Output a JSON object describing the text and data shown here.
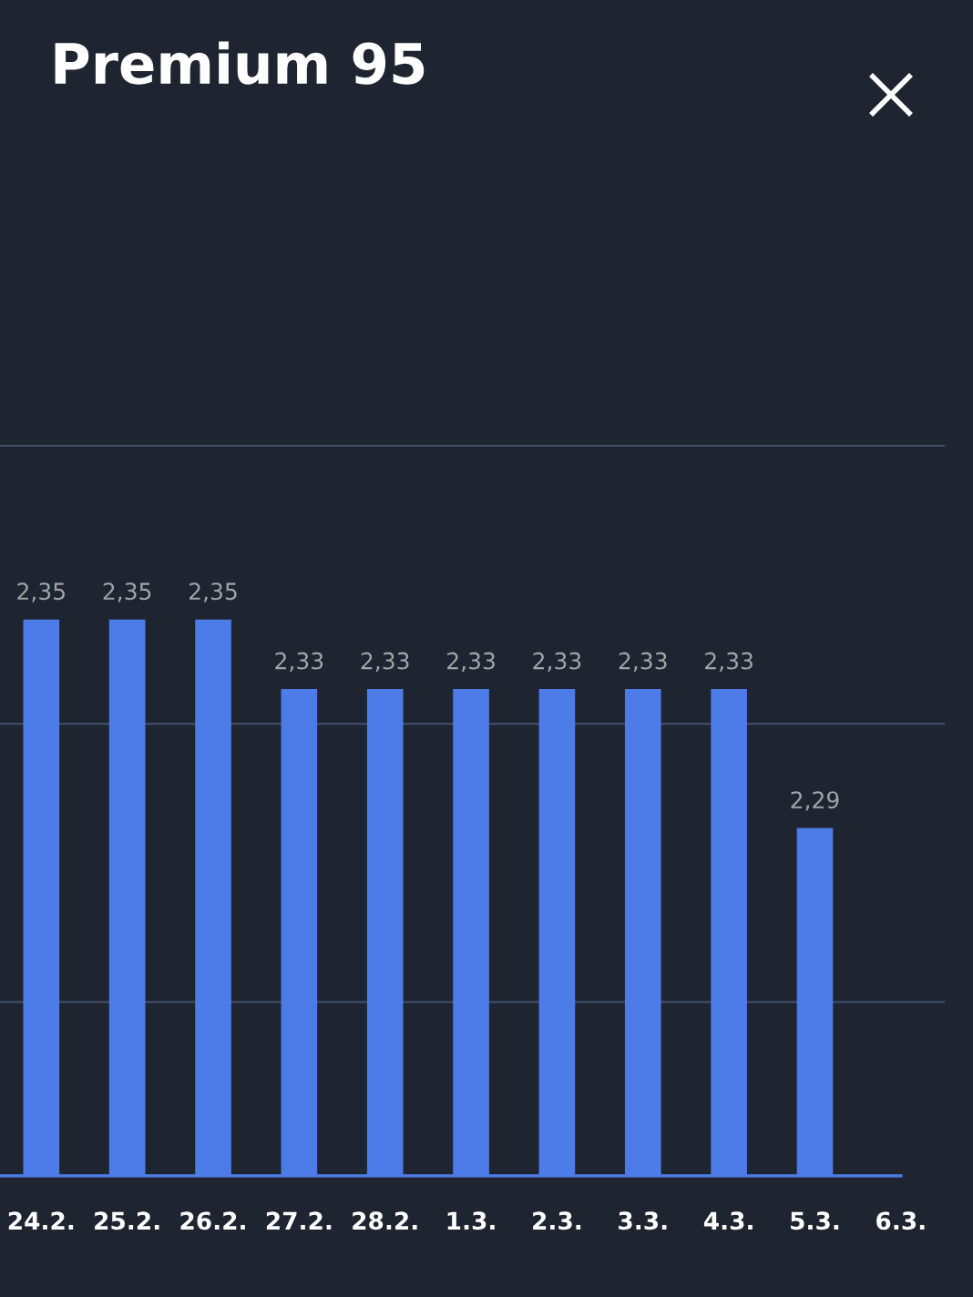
{
  "chart_data": {
    "type": "bar",
    "title": "Premium 95",
    "categories": [
      "24.2.",
      "25.2.",
      "26.2.",
      "27.2.",
      "28.2.",
      "1.3.",
      "2.3.",
      "3.3.",
      "4.3.",
      "5.3.",
      "6.3."
    ],
    "values": [
      2.35,
      2.35,
      2.35,
      2.33,
      2.33,
      2.33,
      2.33,
      2.33,
      2.33,
      2.29,
      null
    ],
    "value_labels": [
      "2,35",
      "2,35",
      "2,35",
      "2,33",
      "2,33",
      "2,33",
      "2,33",
      "2,33",
      "2,33",
      "2,29",
      null
    ],
    "color": "#4d7ce9",
    "ylim": [
      2.19,
      2.4
    ],
    "ref_lines": [
      {
        "axis": "y",
        "value": 2.24,
        "color": "#3f4d6a"
      },
      {
        "axis": "y",
        "value": 2.32,
        "color": "#3f4d6a"
      },
      {
        "axis": "y",
        "value": 2.4,
        "color": "#3f4d6a"
      }
    ],
    "tick_labels": "x"
  }
}
